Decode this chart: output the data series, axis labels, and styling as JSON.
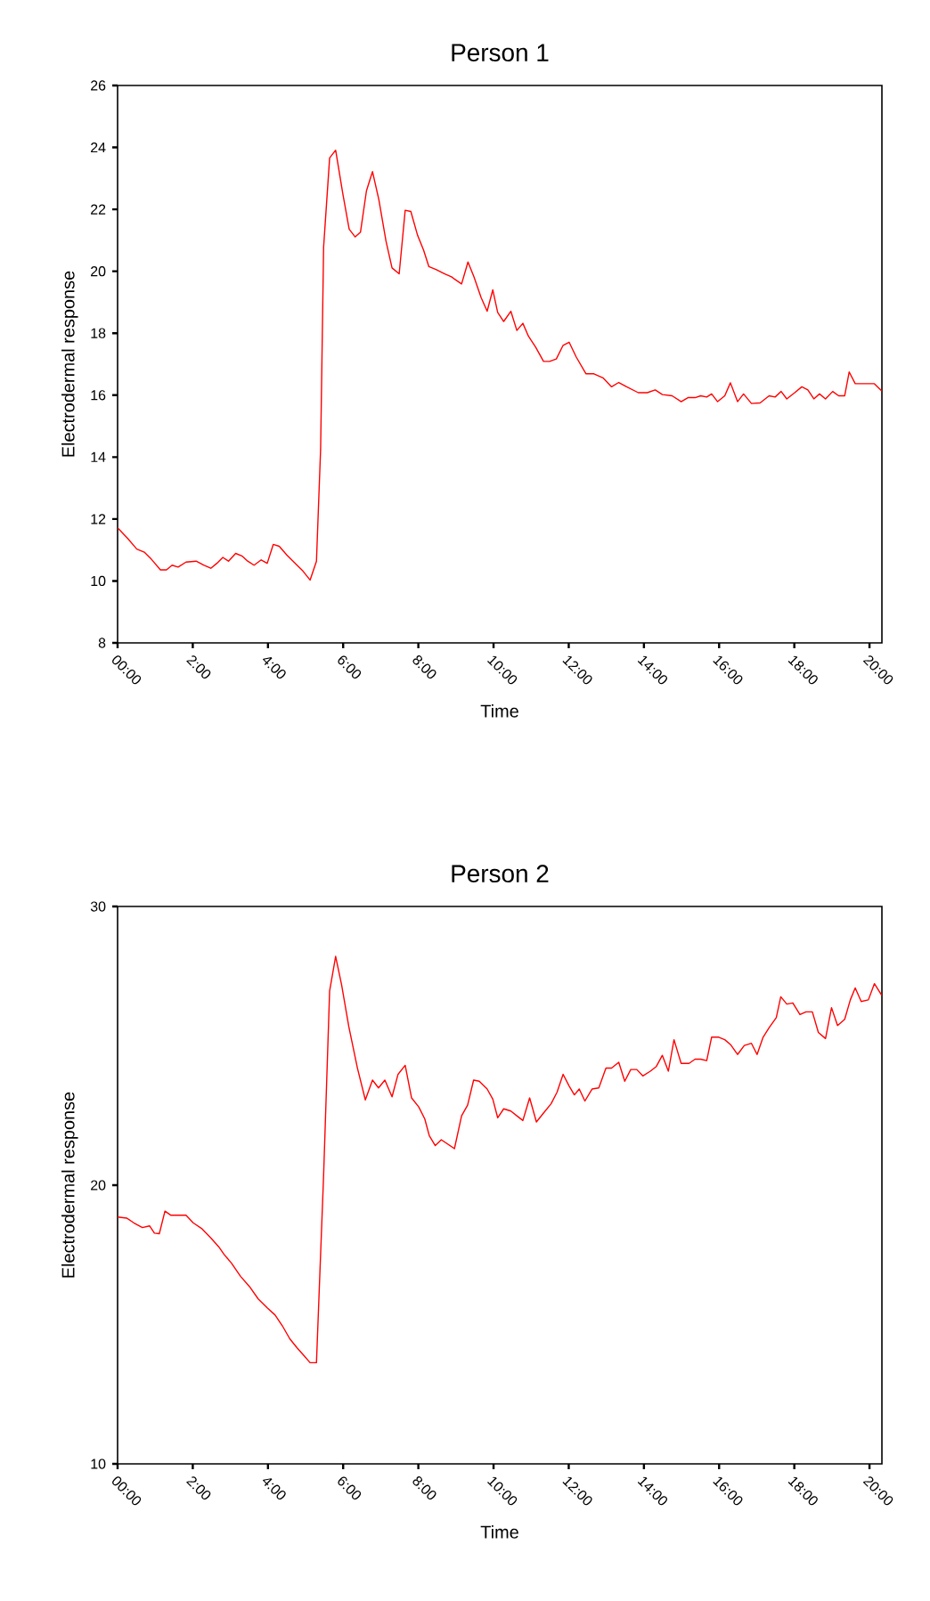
{
  "chart_data": [
    {
      "type": "line",
      "title": "Person 1",
      "xlabel": "Time",
      "ylabel": "Electrodermal response",
      "xlim": [
        0,
        20.33
      ],
      "ylim": [
        8,
        26
      ],
      "xticks": [
        {
          "value": 0,
          "label": "00:00"
        },
        {
          "value": 2,
          "label": "2:00"
        },
        {
          "value": 4,
          "label": "4:00"
        },
        {
          "value": 6,
          "label": "6:00"
        },
        {
          "value": 8,
          "label": "8:00"
        },
        {
          "value": 10,
          "label": "10:00"
        },
        {
          "value": 12,
          "label": "12:00"
        },
        {
          "value": 14,
          "label": "14:00"
        },
        {
          "value": 16,
          "label": "16:00"
        },
        {
          "value": 18,
          "label": "18:00"
        },
        {
          "value": 20,
          "label": "20:00"
        }
      ],
      "yticks": [
        8,
        10,
        12,
        14,
        16,
        18,
        20,
        22,
        24,
        26
      ],
      "x": [
        0,
        0.27,
        0.51,
        0.71,
        0.9,
        1.14,
        1.3,
        1.45,
        1.61,
        1.82,
        2.09,
        2.29,
        2.48,
        2.64,
        2.8,
        2.95,
        3.14,
        3.32,
        3.46,
        3.63,
        3.82,
        3.98,
        4.14,
        4.3,
        4.5,
        4.69,
        4.93,
        5.12,
        5.29,
        5.4,
        5.48,
        5.64,
        5.8,
        5.99,
        6.16,
        6.32,
        6.46,
        6.62,
        6.78,
        6.95,
        7.14,
        7.3,
        7.49,
        7.65,
        7.8,
        7.98,
        8.14,
        8.28,
        8.48,
        8.69,
        8.88,
        9.15,
        9.32,
        9.48,
        9.67,
        9.83,
        9.98,
        10.11,
        10.27,
        10.46,
        10.62,
        10.78,
        10.93,
        11.12,
        11.33,
        11.49,
        11.67,
        11.85,
        12.01,
        12.2,
        12.46,
        12.67,
        12.91,
        13.14,
        13.33,
        13.54,
        13.85,
        14.09,
        14.3,
        14.49,
        14.75,
        14.99,
        15.17,
        15.36,
        15.51,
        15.67,
        15.8,
        15.96,
        16.15,
        16.3,
        16.49,
        16.65,
        16.86,
        17.09,
        17.33,
        17.49,
        17.65,
        17.8,
        18.01,
        18.2,
        18.36,
        18.52,
        18.67,
        18.83,
        19.02,
        19.18,
        19.34,
        19.46,
        19.62,
        19.94,
        20.13,
        20.33
      ],
      "series": [
        {
          "color": "#ff0000",
          "values": [
            11.72,
            11.37,
            11.03,
            10.93,
            10.7,
            10.36,
            10.36,
            10.51,
            10.45,
            10.61,
            10.64,
            10.51,
            10.41,
            10.57,
            10.76,
            10.64,
            10.89,
            10.8,
            10.64,
            10.51,
            10.68,
            10.57,
            11.18,
            11.12,
            10.84,
            10.61,
            10.32,
            10.03,
            10.64,
            14.25,
            20.78,
            23.66,
            23.91,
            22.51,
            21.36,
            21.11,
            21.26,
            22.6,
            23.22,
            22.31,
            20.97,
            20.11,
            19.92,
            21.97,
            21.93,
            21.16,
            20.68,
            20.15,
            20.05,
            19.92,
            19.82,
            19.59,
            20.3,
            19.82,
            19.15,
            18.71,
            19.4,
            18.67,
            18.38,
            18.71,
            18.09,
            18.32,
            17.9,
            17.55,
            17.09,
            17.09,
            17.17,
            17.61,
            17.71,
            17.23,
            16.69,
            16.69,
            16.56,
            16.27,
            16.41,
            16.27,
            16.08,
            16.08,
            16.17,
            16.02,
            15.98,
            15.79,
            15.92,
            15.92,
            15.98,
            15.94,
            16.04,
            15.79,
            15.98,
            16.4,
            15.79,
            16.04,
            15.73,
            15.75,
            15.98,
            15.94,
            16.12,
            15.88,
            16.08,
            16.27,
            16.17,
            15.88,
            16.04,
            15.88,
            16.12,
            15.98,
            15.98,
            16.75,
            16.37,
            16.37,
            16.37,
            16.13
          ]
        }
      ]
    },
    {
      "type": "line",
      "title": "Person 2",
      "xlabel": "Time",
      "ylabel": "Electrodermal response",
      "xlim": [
        0,
        20.33
      ],
      "ylim": [
        10,
        30
      ],
      "xticks": [
        {
          "value": 0,
          "label": "00:00"
        },
        {
          "value": 2,
          "label": "2:00"
        },
        {
          "value": 4,
          "label": "4:00"
        },
        {
          "value": 6,
          "label": "6:00"
        },
        {
          "value": 8,
          "label": "8:00"
        },
        {
          "value": 10,
          "label": "10:00"
        },
        {
          "value": 12,
          "label": "12:00"
        },
        {
          "value": 14,
          "label": "14:00"
        },
        {
          "value": 16,
          "label": "16:00"
        },
        {
          "value": 18,
          "label": "18:00"
        },
        {
          "value": 20,
          "label": "20:00"
        }
      ],
      "yticks": [
        10,
        20,
        30
      ],
      "x": [
        0,
        0.24,
        0.43,
        0.66,
        0.85,
        0.98,
        1.11,
        1.26,
        1.42,
        1.82,
        2.01,
        2.25,
        2.48,
        2.69,
        2.83,
        3.03,
        3.27,
        3.51,
        3.74,
        3.98,
        4.19,
        4.38,
        4.58,
        4.77,
        4.98,
        5.12,
        5.29,
        5.48,
        5.64,
        5.8,
        5.96,
        6.15,
        6.38,
        6.59,
        6.78,
        6.94,
        7.11,
        7.3,
        7.46,
        7.65,
        7.82,
        8.01,
        8.17,
        8.29,
        8.45,
        8.61,
        8.96,
        9.15,
        9.31,
        9.47,
        9.62,
        9.83,
        9.98,
        10.11,
        10.27,
        10.46,
        10.62,
        10.78,
        10.96,
        11.14,
        11.33,
        11.53,
        11.69,
        11.85,
        12.01,
        12.15,
        12.28,
        12.43,
        12.62,
        12.8,
        12.99,
        13.14,
        13.33,
        13.49,
        13.65,
        13.81,
        13.97,
        14.17,
        14.33,
        14.49,
        14.65,
        14.8,
        14.99,
        15.2,
        15.36,
        15.51,
        15.67,
        15.8,
        15.99,
        16.15,
        16.3,
        16.49,
        16.67,
        16.86,
        17.01,
        17.17,
        17.33,
        17.52,
        17.64,
        17.8,
        17.96,
        18.15,
        18.31,
        18.48,
        18.64,
        18.83,
        18.99,
        19.15,
        19.34,
        19.49,
        19.62,
        19.78,
        19.97,
        20.13,
        20.33
      ],
      "series": [
        {
          "color": "#ff0000",
          "values": [
            18.86,
            18.82,
            18.65,
            18.48,
            18.54,
            18.28,
            18.26,
            19.07,
            18.92,
            18.92,
            18.65,
            18.43,
            18.11,
            17.79,
            17.52,
            17.2,
            16.73,
            16.36,
            15.92,
            15.6,
            15.34,
            14.96,
            14.49,
            14.17,
            13.85,
            13.63,
            13.63,
            20.35,
            26.97,
            28.21,
            27.18,
            25.69,
            24.2,
            23.06,
            23.77,
            23.49,
            23.77,
            23.17,
            23.98,
            24.3,
            23.13,
            22.81,
            22.38,
            21.78,
            21.42,
            21.63,
            21.31,
            22.49,
            22.87,
            23.77,
            23.73,
            23.45,
            23.09,
            22.42,
            22.74,
            22.66,
            22.49,
            22.32,
            23.13,
            22.27,
            22.59,
            22.92,
            23.34,
            23.98,
            23.56,
            23.24,
            23.45,
            23.02,
            23.45,
            23.49,
            24.2,
            24.2,
            24.41,
            23.73,
            24.15,
            24.15,
            23.92,
            24.09,
            24.26,
            24.66,
            24.09,
            25.22,
            24.37,
            24.37,
            24.52,
            24.52,
            24.47,
            25.31,
            25.31,
            25.22,
            25.05,
            24.69,
            25.01,
            25.09,
            24.69,
            25.31,
            25.65,
            26.01,
            26.76,
            26.5,
            26.54,
            26.12,
            26.22,
            26.22,
            25.48,
            25.26,
            26.37,
            25.73,
            25.95,
            26.65,
            27.08,
            26.59,
            26.65,
            27.23,
            26.8
          ]
        }
      ]
    }
  ]
}
